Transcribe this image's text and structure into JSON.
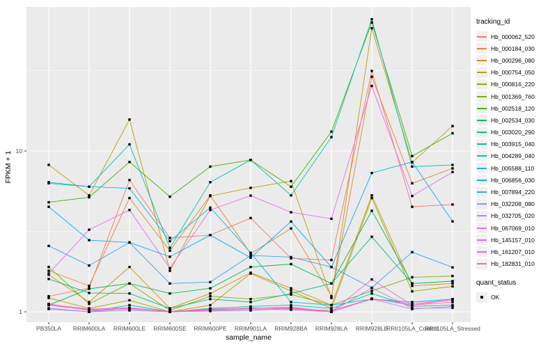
{
  "colors": {
    "panel_bg": "#EBEBEB",
    "grid": "#FFFFFF",
    "axis_text": "#4D4D4D",
    "tick_mark": "#333333",
    "point": "#000000",
    "legend_key_bg": "#F0F0F0"
  },
  "chart_data": {
    "type": "line",
    "title": "",
    "xlabel": "sample_name",
    "ylabel": "FPKM + 1",
    "y_scale": "log10",
    "y_axis_tick_values": [
      10,
      1
    ],
    "grid_major_values": [
      1,
      10
    ],
    "grid_minor_values": [
      3.1623,
      31.623
    ],
    "ylim": [
      0.89,
      79
    ],
    "point_shape": "filled-black-square",
    "legend": {
      "title": "tracking_id",
      "position": "right"
    },
    "legend2": {
      "title": "quant_status",
      "items": [
        "OK"
      ]
    },
    "categories": [
      "PB350LA",
      "RRIM600LA",
      "RRIM600LE",
      "RRIM600SE",
      "RRIM600PE",
      "RRIM901LA",
      "RRIM928BA",
      "RRIM928LA",
      "RRIM928LB",
      "RRII105LA_Control",
      "RRII105LA_Stressed"
    ],
    "series": [
      {
        "name": "Hb_000062_520",
        "color": "#F8766D",
        "values": [
          1.25,
          1.4,
          6.6,
          2.88,
          3.0,
          3.83,
          2.15,
          2.1,
          31.5,
          4.5,
          4.65
        ]
      },
      {
        "name": "Hb_000184_030",
        "color": "#EA8331",
        "values": [
          1.8,
          1.45,
          5.1,
          2.4,
          5.3,
          2.3,
          3.3,
          1.25,
          29.0,
          6.3,
          7.8
        ]
      },
      {
        "name": "Hb_000296_080",
        "color": "#D89000",
        "values": [
          1.7,
          1.15,
          1.9,
          1.05,
          1.3,
          1.75,
          1.4,
          1.1,
          5.3,
          1.45,
          1.5
        ]
      },
      {
        "name": "Hb_000754_050",
        "color": "#C49A00",
        "values": [
          8.2,
          5.3,
          15.7,
          1.8,
          5.25,
          5.9,
          6.5,
          1.22,
          58.0,
          8.5,
          14.3
        ]
      },
      {
        "name": "Hb_000816_220",
        "color": "#A3A500",
        "values": [
          1.22,
          1.05,
          1.18,
          1.0,
          1.1,
          1.73,
          1.35,
          1.05,
          5.1,
          1.34,
          1.44
        ]
      },
      {
        "name": "Hb_001369_760",
        "color": "#7CAE00",
        "values": [
          1.9,
          1.12,
          1.5,
          1.02,
          1.25,
          1.2,
          1.28,
          1.1,
          1.35,
          1.64,
          1.67
        ]
      },
      {
        "name": "Hb_002518_120",
        "color": "#39B600",
        "values": [
          4.8,
          5.16,
          8.55,
          5.2,
          8.0,
          8.8,
          6.0,
          13.2,
          63.0,
          9.3,
          12.9
        ]
      },
      {
        "name": "Hb_002534_030",
        "color": "#00BB4E",
        "values": [
          1.1,
          1.39,
          1.5,
          1.3,
          1.4,
          1.9,
          1.98,
          1.5,
          4.25,
          1.5,
          1.55
        ]
      },
      {
        "name": "Hb_003020_290",
        "color": "#00BF7D",
        "values": [
          1.6,
          1.31,
          1.3,
          1.05,
          1.2,
          1.15,
          1.3,
          1.5,
          2.93,
          1.5,
          1.55
        ]
      },
      {
        "name": "Hb_003915_040",
        "color": "#00C1A3",
        "values": [
          1.05,
          1.0,
          1.1,
          1.0,
          1.05,
          1.08,
          1.1,
          1.05,
          1.3,
          1.08,
          1.1
        ]
      },
      {
        "name": "Hb_004289_040",
        "color": "#00BFC4",
        "values": [
          6.4,
          6.0,
          11.0,
          2.5,
          6.4,
          8.8,
          5.3,
          12.2,
          66.0,
          8.0,
          8.2
        ]
      },
      {
        "name": "Hb_005588_110",
        "color": "#00BAE0",
        "values": [
          6.3,
          6.0,
          5.86,
          2.75,
          4.45,
          2.33,
          1.15,
          1.1,
          1.2,
          1.15,
          1.2
        ]
      },
      {
        "name": "Hb_006856_030",
        "color": "#00B0F6",
        "values": [
          4.5,
          2.79,
          2.7,
          2.2,
          3.0,
          2.17,
          3.64,
          1.9,
          7.3,
          8.55,
          3.65
        ]
      },
      {
        "name": "Hb_007894_220",
        "color": "#35A2FF",
        "values": [
          2.57,
          1.94,
          2.7,
          1.5,
          1.53,
          2.24,
          2.19,
          1.9,
          1.41,
          2.35,
          1.89
        ]
      },
      {
        "name": "Hb_032208_080",
        "color": "#9590FF",
        "values": [
          1.05,
          1.0,
          1.02,
          1.0,
          1.01,
          1.02,
          1.05,
          1.0,
          1.41,
          1.05,
          1.06
        ]
      },
      {
        "name": "Hb_032705_020",
        "color": "#C77CFF",
        "values": [
          1.04,
          1.0,
          1.05,
          1.0,
          1.02,
          1.04,
          1.03,
          1.0,
          1.2,
          1.04,
          1.08
        ]
      },
      {
        "name": "Hb_067069_010",
        "color": "#E76BF3",
        "values": [
          1.73,
          3.24,
          4.3,
          1.87,
          4.3,
          5.28,
          4.16,
          3.79,
          25.4,
          5.25,
          7.4
        ]
      },
      {
        "name": "Hb_145157_010",
        "color": "#FA62DB",
        "values": [
          1.12,
          1.02,
          1.05,
          1.0,
          1.03,
          1.05,
          1.06,
          1.0,
          1.59,
          1.1,
          1.19
        ]
      },
      {
        "name": "Hb_161207_010",
        "color": "#FF61CC",
        "values": [
          1.1,
          1.03,
          1.04,
          1.01,
          1.02,
          1.06,
          1.04,
          1.02,
          1.2,
          1.12,
          1.19
        ]
      },
      {
        "name": "Hb_182831_010",
        "color": "#FF68A1",
        "values": [
          1.11,
          1.04,
          1.06,
          1.0,
          1.04,
          1.05,
          1.07,
          1.0,
          1.21,
          1.1,
          1.15
        ]
      }
    ]
  },
  "layout_note": "log10 y-axis; black square markers on every point (quant_status OK)"
}
